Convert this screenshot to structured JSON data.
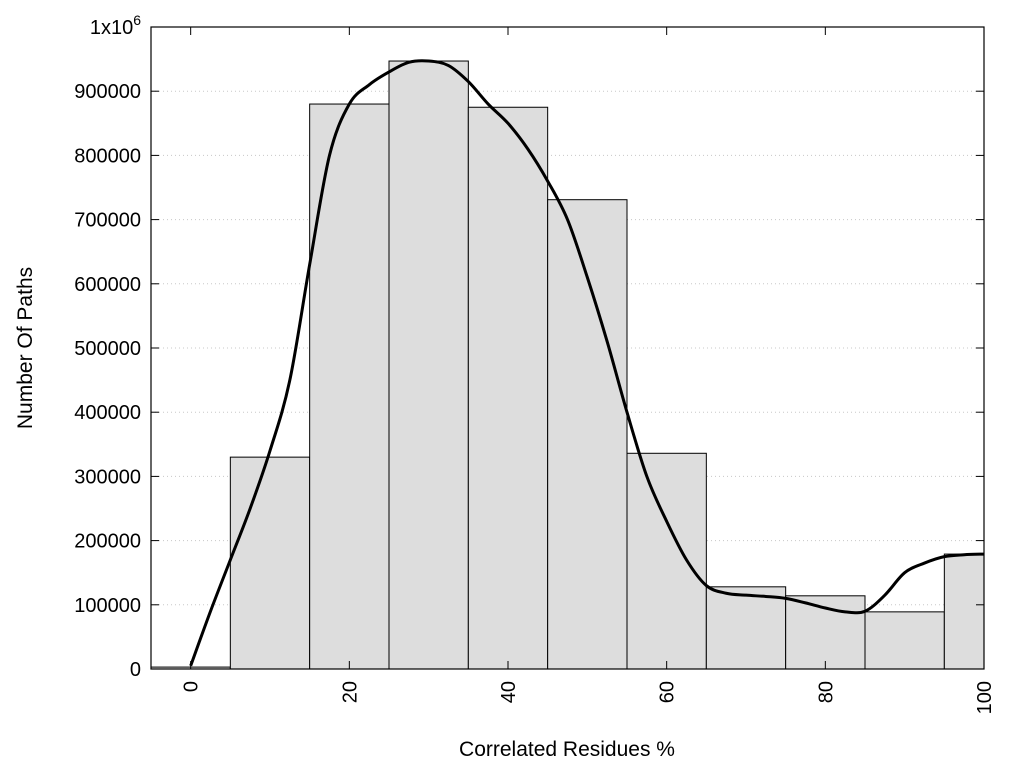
{
  "chart_data": {
    "type": "bar",
    "xlabel": "Correlated Residues %",
    "ylabel": "Number Of Paths",
    "xlim": [
      -5,
      100
    ],
    "ylim": [
      0,
      1000000
    ],
    "x_ticks": [
      0,
      20,
      40,
      60,
      80,
      100
    ],
    "y_ticks": [
      0,
      100000,
      200000,
      300000,
      400000,
      500000,
      600000,
      700000,
      800000,
      900000,
      1000000
    ],
    "y_tick_labels": [
      "0",
      "100000",
      "200000",
      "300000",
      "400000",
      "500000",
      "600000",
      "700000",
      "800000",
      "900000",
      "1x10^6"
    ],
    "grid": "horizontal-dotted",
    "bin_width": 10,
    "bars": {
      "centers": [
        0,
        10,
        20,
        30,
        40,
        50,
        60,
        70,
        80,
        90,
        100
      ],
      "values": [
        3000,
        330000,
        880000,
        947000,
        875000,
        731000,
        336000,
        128000,
        114000,
        89000,
        179000
      ],
      "color": "#dddddd",
      "stroke": "#000000"
    },
    "series": [
      {
        "type": "line",
        "x": [
          0,
          2.5,
          5,
          7.5,
          10,
          12.5,
          15,
          17.5,
          20,
          22.5,
          25,
          27.5,
          30,
          32.5,
          35,
          37.5,
          40,
          42.5,
          45,
          47.5,
          50,
          52.5,
          55,
          57.5,
          60,
          62.5,
          65,
          67.5,
          70,
          72.5,
          75,
          77.5,
          80,
          82.5,
          85,
          87.5,
          90,
          92.5,
          95,
          97.5,
          100
        ],
        "y": [
          5000,
          90000,
          170000,
          250000,
          340000,
          450000,
          630000,
          800000,
          880000,
          910000,
          930000,
          945000,
          947000,
          940000,
          915000,
          880000,
          850000,
          810000,
          760000,
          700000,
          610000,
          510000,
          400000,
          300000,
          230000,
          170000,
          130000,
          118000,
          115000,
          113000,
          110000,
          103000,
          95000,
          89000,
          90000,
          115000,
          150000,
          165000,
          175000,
          178000,
          179000
        ],
        "color": "#000000"
      }
    ]
  }
}
